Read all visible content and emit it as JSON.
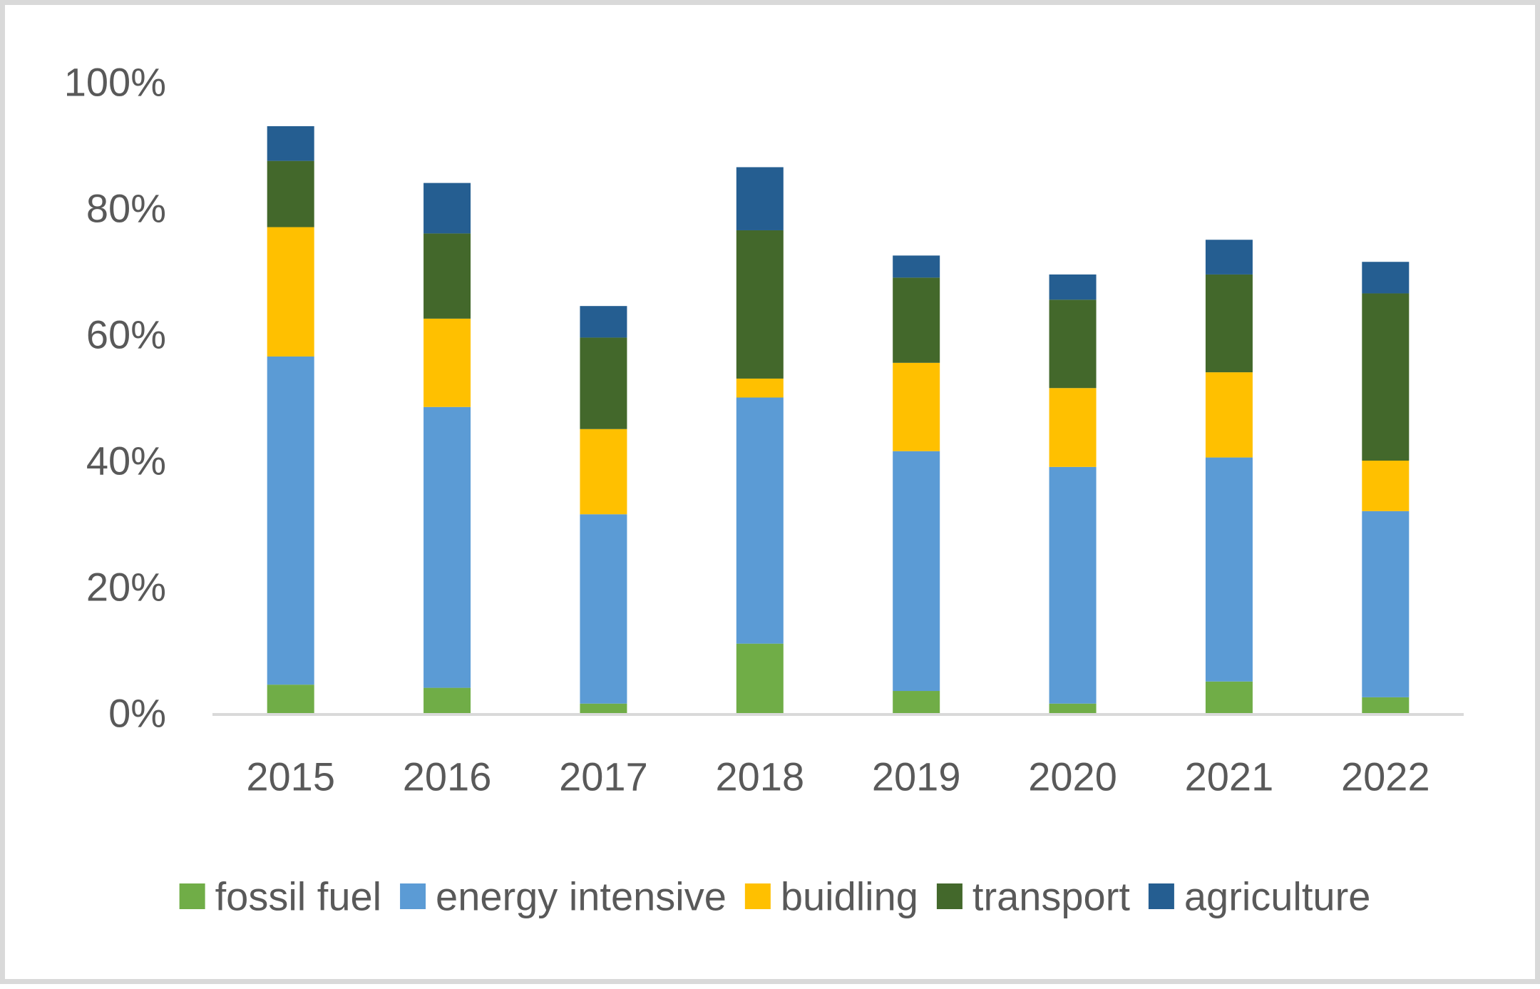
{
  "chart_data": {
    "type": "bar",
    "stacked": true,
    "categories": [
      "2015",
      "2016",
      "2017",
      "2018",
      "2019",
      "2020",
      "2021",
      "2022"
    ],
    "series": [
      {
        "name": "fossil fuel",
        "color": "#70ad47",
        "values": [
          4.5,
          4.0,
          1.5,
          11.0,
          3.5,
          1.5,
          5.0,
          2.5
        ]
      },
      {
        "name": "energy intensive",
        "color": "#5b9bd5",
        "values": [
          52.0,
          44.5,
          30.0,
          39.0,
          38.0,
          37.5,
          35.5,
          29.5
        ]
      },
      {
        "name": "buidling",
        "color": "#ffc000",
        "values": [
          20.5,
          14.0,
          13.5,
          3.0,
          14.0,
          12.5,
          13.5,
          8.0
        ]
      },
      {
        "name": "transport",
        "color": "#43682b",
        "values": [
          10.5,
          13.5,
          14.5,
          23.5,
          13.5,
          14.0,
          15.5,
          26.5
        ]
      },
      {
        "name": "agriculture",
        "color": "#255e91",
        "values": [
          5.5,
          8.0,
          5.0,
          10.0,
          3.5,
          4.0,
          5.5,
          5.0
        ]
      }
    ],
    "yaxis": {
      "ticks": [
        "0%",
        "20%",
        "40%",
        "60%",
        "80%",
        "100%"
      ],
      "ylim": [
        0,
        100
      ]
    },
    "legend_position": "bottom",
    "grid": false
  }
}
